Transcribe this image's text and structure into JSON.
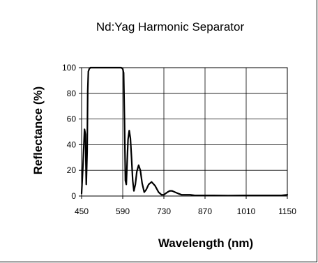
{
  "chart_data": {
    "type": "line",
    "title": "Nd:Yag Harmonic Separator",
    "xlabel": "Wavelength (nm)",
    "ylabel": "Reflectance (%)",
    "xlim": [
      450,
      1150
    ],
    "ylim": [
      0,
      100
    ],
    "x_ticks": [
      450,
      590,
      730,
      870,
      1010,
      1150
    ],
    "x_tick_labels": [
      "450",
      "590",
      "730",
      "870",
      "1010",
      "1150"
    ],
    "y_ticks": [
      0,
      20,
      40,
      60,
      80,
      100
    ],
    "y_tick_labels": [
      "0",
      "20",
      "40",
      "60",
      "80",
      "100"
    ],
    "grid": true,
    "series": [
      {
        "color": "#000000",
        "x": [
          450,
          455,
          460,
          463,
          466,
          469,
          471,
          473,
          476,
          480,
          485,
          490,
          500,
          520,
          540,
          560,
          575,
          585,
          590,
          593,
          596,
          599,
          602,
          605,
          608,
          612,
          616,
          620,
          624,
          628,
          633,
          638,
          644,
          650,
          656,
          663,
          670,
          678,
          688,
          700,
          712,
          722,
          730,
          736,
          742,
          750,
          758,
          768,
          778,
          790,
          800,
          810,
          820,
          835,
          850,
          870,
          900,
          950,
          1000,
          1050,
          1100,
          1130,
          1150
        ],
        "y": [
          2,
          25,
          52,
          48,
          9,
          35,
          82,
          97,
          99,
          100,
          100,
          100,
          100,
          100,
          100,
          100,
          100,
          100,
          99,
          96,
          60,
          12,
          9,
          26,
          44,
          51,
          45,
          30,
          12,
          4,
          9,
          19,
          24,
          20,
          10,
          3,
          5,
          9,
          11,
          8,
          3,
          1,
          1,
          2,
          3,
          4,
          4,
          3,
          2,
          1,
          1,
          1,
          1,
          0.5,
          0.5,
          0.5,
          0.5,
          0.3,
          0.5,
          0.5,
          0.5,
          0.5,
          1
        ]
      }
    ]
  }
}
